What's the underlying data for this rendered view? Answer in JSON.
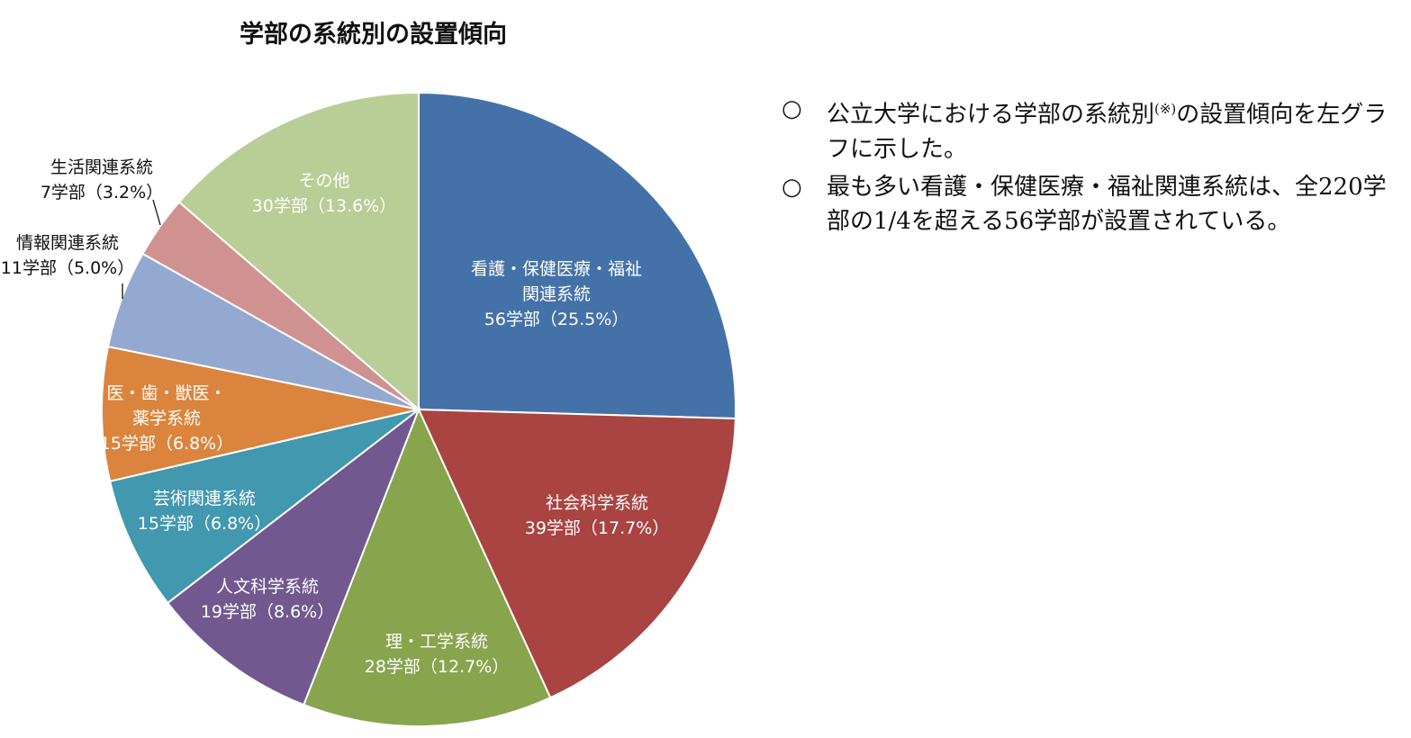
{
  "chart_data": {
    "type": "pie",
    "title": "学部の系統別の設置傾向",
    "total": 220,
    "start": "top",
    "direction": "clockwise",
    "slices": [
      {
        "name": "看護・保健医療・福祉関連系統",
        "label_lines": [
          "看護・保健医療・福祉",
          "関連系統",
          "56学部（25.5%）"
        ],
        "value": 56,
        "percent": 25.5,
        "color": "#4472A8"
      },
      {
        "name": "社会科学系統",
        "label_lines": [
          "社会科学系統",
          "39学部（17.7%）"
        ],
        "value": 39,
        "percent": 17.7,
        "color": "#A94442"
      },
      {
        "name": "理・工学系統",
        "label_lines": [
          "理・工学系統",
          "28学部（12.7%）"
        ],
        "value": 28,
        "percent": 12.7,
        "color": "#88A44C"
      },
      {
        "name": "人文科学系統",
        "label_lines": [
          "人文科学系統",
          "19学部（8.6%）"
        ],
        "value": 19,
        "percent": 8.6,
        "color": "#71588F"
      },
      {
        "name": "芸術関連系統",
        "label_lines": [
          "芸術関連系統",
          "15学部（6.8%）"
        ],
        "value": 15,
        "percent": 6.8,
        "color": "#4198AF"
      },
      {
        "name": "医・歯・獣医・薬学系統",
        "label_lines": [
          "医・歯・獣医・",
          "薬学系統",
          "15学部（6.8%）"
        ],
        "value": 15,
        "percent": 6.8,
        "color": "#DB843D"
      },
      {
        "name": "情報関連系統",
        "label_lines": [
          "情報関連系統",
          "11学部（5.0%）"
        ],
        "value": 11,
        "percent": 5.0,
        "color": "#93A9CF"
      },
      {
        "name": "生活関連系統",
        "label_lines": [
          "生活関連系統",
          "7学部（3.2%）"
        ],
        "value": 7,
        "percent": 3.2,
        "color": "#D09291"
      },
      {
        "name": "その他",
        "label_lines": [
          "その他",
          "30学部（13.6%）"
        ],
        "value": 30,
        "percent": 13.6,
        "color": "#B9CD96"
      }
    ]
  },
  "notes": {
    "bullet": "○",
    "items": [
      {
        "text": "公立大学における学部の系統別",
        "sup": "(※)",
        "text2": "の設置傾向を左グラフに示した。"
      },
      {
        "text": "最も多い看護・保健医療・福祉関連系統は、全220学部の1/4を超える56学部が設置されている。",
        "sup": "",
        "text2": ""
      }
    ]
  }
}
